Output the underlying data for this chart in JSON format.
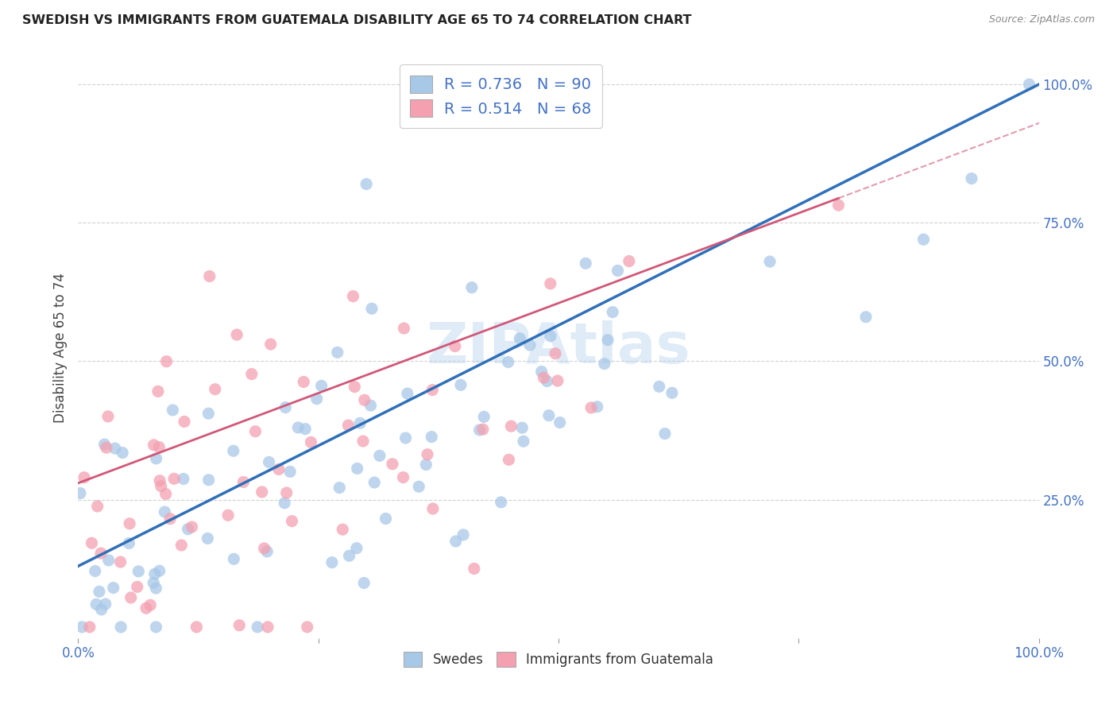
{
  "title": "SWEDISH VS IMMIGRANTS FROM GUATEMALA DISABILITY AGE 65 TO 74 CORRELATION CHART",
  "source": "Source: ZipAtlas.com",
  "ylabel": "Disability Age 65 to 74",
  "swedes_R": 0.736,
  "swedes_N": 90,
  "guatemala_R": 0.514,
  "guatemala_N": 68,
  "swedes_color": "#a8c8e8",
  "guatemala_color": "#f4a0b0",
  "swedes_line_color": "#3070b8",
  "guatemala_line_color": "#d05878",
  "background_color": "#ffffff",
  "grid_color": "#cccccc",
  "watermark": "ZIPAtlas",
  "xlim": [
    0,
    1
  ],
  "ylim": [
    0,
    1.05
  ],
  "x_ticks": [
    0,
    0.25,
    0.5,
    0.75,
    1.0
  ],
  "x_tick_labels_show": [
    "0.0%",
    "",
    "",
    "",
    "100.0%"
  ],
  "y_ticks": [
    0.25,
    0.5,
    0.75,
    1.0
  ],
  "y_tick_labels": [
    "25.0%",
    "50.0%",
    "75.0%",
    "100.0%"
  ],
  "legend_R_color": "#4472c4",
  "legend_N_color": "#e04060",
  "title_color": "#222222",
  "source_color": "#888888",
  "tick_color": "#4472c4"
}
